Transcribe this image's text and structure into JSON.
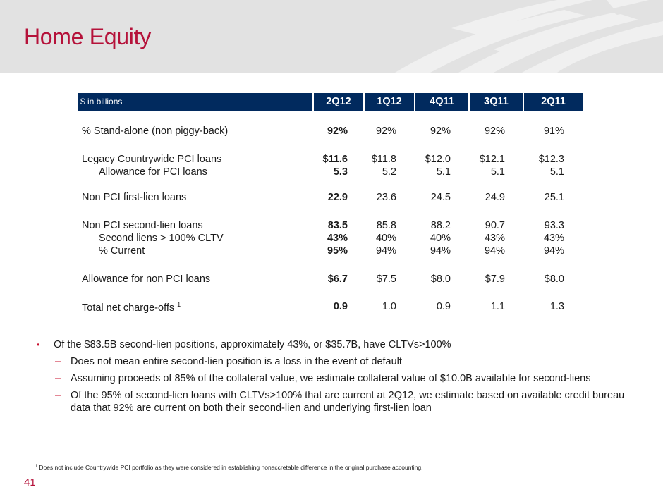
{
  "slide": {
    "title": "Home Equity",
    "page_number": "41",
    "accent_color": "#b5123a",
    "header_color": "#012a5e"
  },
  "table": {
    "unit_label": "$ in billions",
    "columns": [
      "2Q12",
      "1Q12",
      "4Q11",
      "3Q11",
      "2Q11"
    ],
    "rows": [
      {
        "label": "% Stand-alone (non piggy-back)",
        "indent": false,
        "values": [
          "92%",
          "92%",
          "92%",
          "92%",
          "91%"
        ]
      },
      {
        "label": "Legacy Countrywide PCI loans",
        "indent": false,
        "values": [
          "$11.6",
          "$11.8",
          "$12.0",
          "$12.1",
          "$12.3"
        ]
      },
      {
        "label": "Allowance for PCI loans",
        "indent": true,
        "values": [
          "5.3",
          "5.2",
          "5.1",
          "5.1",
          "5.1"
        ]
      },
      {
        "label": "Non PCI first-lien loans",
        "indent": false,
        "values": [
          "22.9",
          "23.6",
          "24.5",
          "24.9",
          "25.1"
        ]
      },
      {
        "label": "Non PCI second-lien loans",
        "indent": false,
        "values": [
          "83.5",
          "85.8",
          "88.2",
          "90.7",
          "93.3"
        ]
      },
      {
        "label": "Second liens > 100% CLTV",
        "indent": true,
        "values": [
          "43%",
          "40%",
          "40%",
          "43%",
          "43%"
        ]
      },
      {
        "label": "% Current",
        "indent": true,
        "values": [
          "95%",
          "94%",
          "94%",
          "94%",
          "94%"
        ]
      },
      {
        "label": "Allowance for non PCI loans",
        "indent": false,
        "values": [
          "$6.7",
          "$7.5",
          "$8.0",
          "$7.9",
          "$8.0"
        ]
      },
      {
        "label": "Total net charge-offs",
        "footnote_marker": "1",
        "indent": false,
        "values": [
          "0.9",
          "1.0",
          "0.9",
          "1.1",
          "1.3"
        ]
      }
    ]
  },
  "bullets": {
    "main": "Of the $83.5B second-lien positions, approximately 43%, or $35.7B, have CLTVs>100%",
    "subs": [
      "Does not mean entire second-lien position is a loss in the event of default",
      "Assuming proceeds of 85% of the collateral value, we estimate collateral value of $10.0B available for second-liens",
      "Of the 95% of second-lien loans with CLTVs>100% that are current at 2Q12, we estimate based on available credit bureau data that 92% are current on both their second-lien and underlying first-lien loan"
    ],
    "bullet_glyph": "•",
    "dash_glyph": "–"
  },
  "footnote": {
    "marker": "1",
    "text": "Does not include Countrywide PCI portfolio as they were considered in establishing nonaccretable difference in the original purchase accounting."
  }
}
